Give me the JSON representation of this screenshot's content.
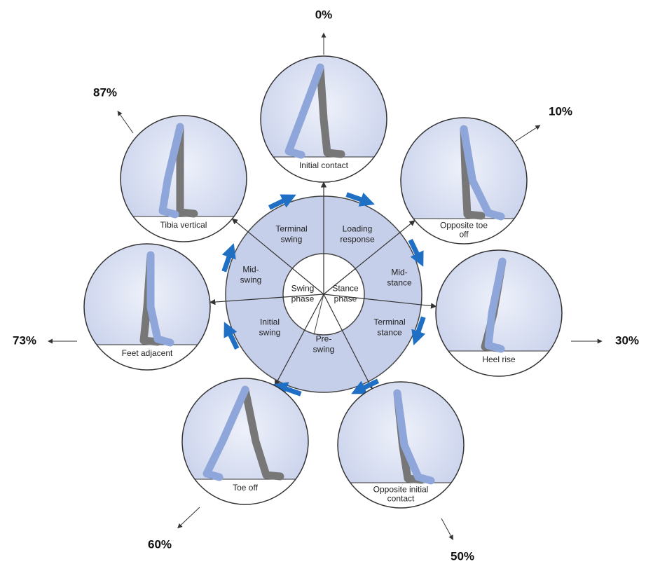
{
  "center": {
    "swing": [
      "Swing",
      "phase"
    ],
    "stance": [
      "Stance",
      "phase"
    ]
  },
  "phases": [
    {
      "label": [
        "Loading",
        "response"
      ]
    },
    {
      "label": [
        "Mid-",
        "stance"
      ]
    },
    {
      "label": [
        "Terminal",
        "stance"
      ]
    },
    {
      "label": [
        "Pre-",
        "swing"
      ]
    },
    {
      "label": [
        "Initial",
        "swing"
      ]
    },
    {
      "label": [
        "Mid-",
        "swing"
      ]
    },
    {
      "label": [
        "Terminal",
        "swing"
      ]
    }
  ],
  "nodes": [
    {
      "label": [
        "Initial contact"
      ],
      "percent": "0%"
    },
    {
      "label": [
        "Opposite toe",
        "off"
      ],
      "percent": "10%"
    },
    {
      "label": [
        "Heel rise"
      ],
      "percent": "30%"
    },
    {
      "label": [
        "Opposite initial",
        "contact"
      ],
      "percent": "50%"
    },
    {
      "label": [
        "Toe off"
      ],
      "percent": "60%"
    },
    {
      "label": [
        "Feet adjacent"
      ],
      "percent": "73%"
    },
    {
      "label": [
        "Tibia vertical"
      ],
      "percent": "87%"
    }
  ]
}
